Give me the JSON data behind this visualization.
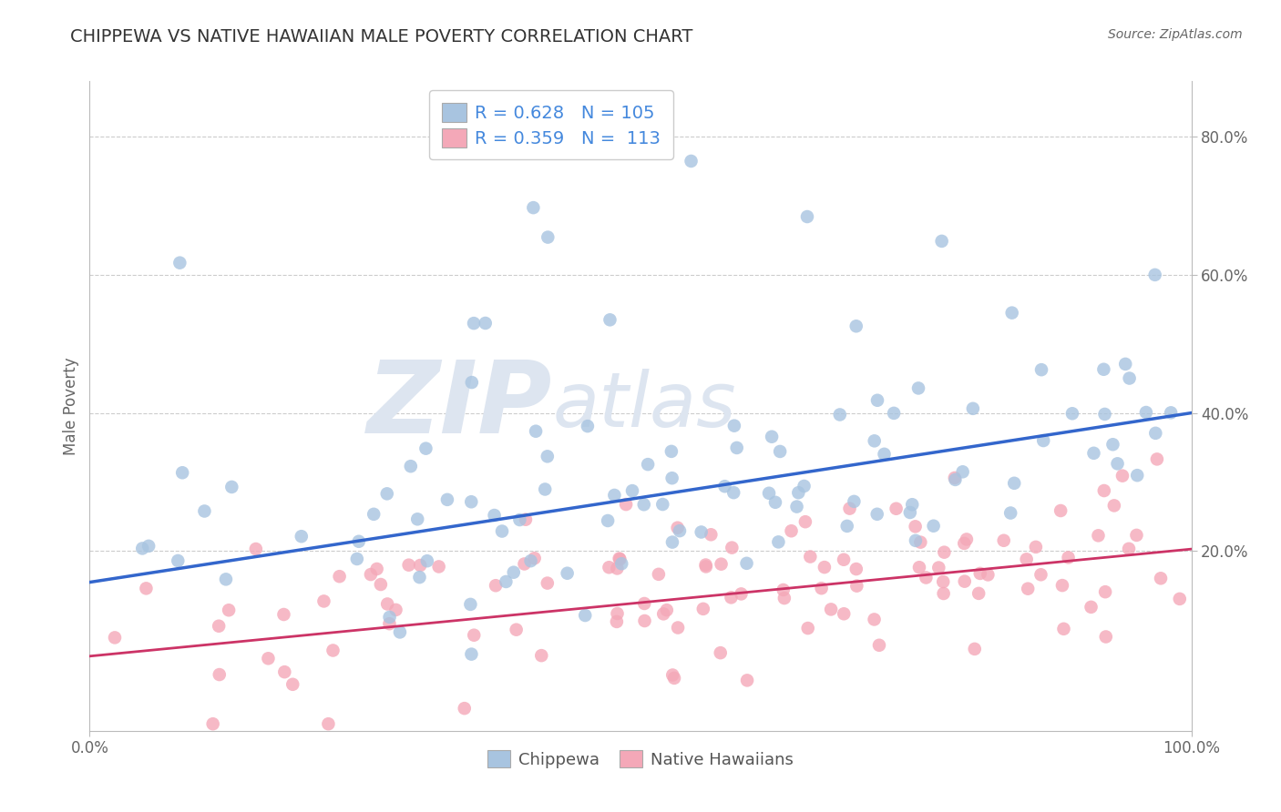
{
  "title": "CHIPPEWA VS NATIVE HAWAIIAN MALE POVERTY CORRELATION CHART",
  "source": "Source: ZipAtlas.com",
  "ylabel": "Male Poverty",
  "xlabel": "",
  "xlim": [
    0.0,
    1.0
  ],
  "ylim": [
    -0.06,
    0.88
  ],
  "xtick_positions": [
    0.0,
    1.0
  ],
  "xtick_labels": [
    "0.0%",
    "100.0%"
  ],
  "ytick_labels": [
    "20.0%",
    "40.0%",
    "60.0%",
    "80.0%"
  ],
  "ytick_positions": [
    0.2,
    0.4,
    0.6,
    0.8
  ],
  "chippewa_color": "#a8c4e0",
  "chippewa_line_color": "#3366cc",
  "hawaiian_color": "#f4a8b8",
  "hawaiian_line_color": "#cc3366",
  "chippewa_R": 0.628,
  "chippewa_N": 105,
  "hawaiian_R": 0.359,
  "hawaiian_N": 113,
  "background_color": "#ffffff",
  "grid_color": "#cccccc",
  "watermark_ZIP": "ZIP",
  "watermark_atlas": "atlas",
  "watermark_color": "#dde5f0",
  "legend_label_chippewa": "Chippewa",
  "legend_label_hawaiian": "Native Hawaiians",
  "title_color": "#333333",
  "axis_label_color": "#666666",
  "tick_label_color": "#666666",
  "source_color": "#666666",
  "legend_value_color": "#4488dd",
  "chippewa_line_intercept": 0.155,
  "chippewa_line_slope": 0.245,
  "hawaiian_line_intercept": 0.048,
  "hawaiian_line_slope": 0.155
}
